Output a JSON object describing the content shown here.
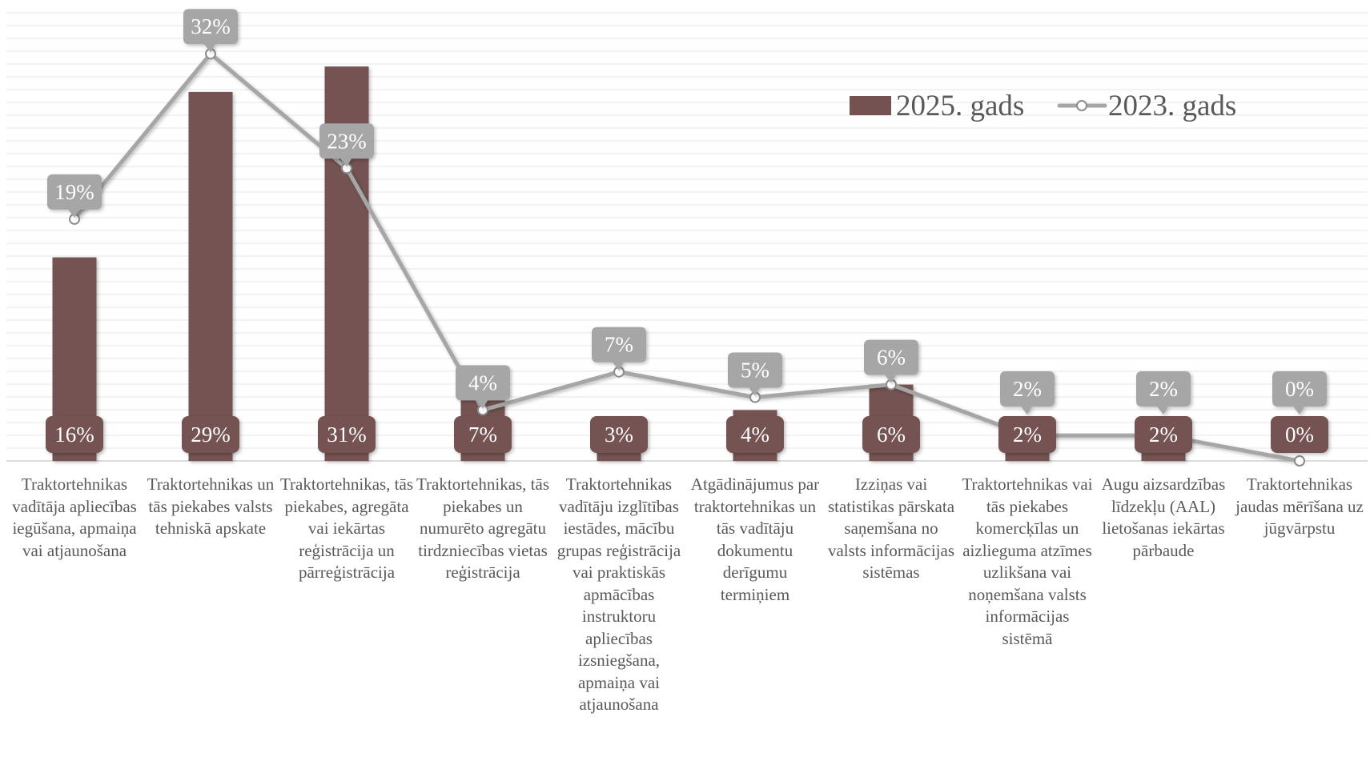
{
  "chart_data": {
    "type": "bar",
    "categories": [
      "Traktortehnikas vadītāja apliecības iegūšana, apmaiņa vai atjaunošana",
      "Traktortehnikas un tās piekabes valsts tehniskā apskate",
      "Traktortehnikas, tās piekabes, agregāta vai iekārtas reģistrācija un pārreģistrācija",
      "Traktortehnikas, tās piekabes un numurēto agregātu tirdzniecības vietas reģistrācija",
      "Traktortehnikas vadītāju izglītības iestādes, mācību grupas reģistrācija vai praktiskās apmācības instruktoru apliecības izsniegšana, apmaiņa vai atjaunošana",
      "Atgādinājumus par traktortehnikas un tās vadītāju dokumentu derīgumu termiņiem",
      "Izziņas vai statistikas pārskata saņemšana no valsts informācijas sistēmas",
      "Traktortehnikas vai tās piekabes komercķīlas un aizlieguma atzīmes uzlikšana vai noņemšana valsts informācijas sistēmā",
      "Augu aizsardzības līdzekļu (AAL) lietošanas iekārtas pārbaude",
      "Traktortehnikas jaudas mērīšana uz jūgvārpstu"
    ],
    "series": [
      {
        "name": "2025. gads",
        "kind": "bar",
        "color": "#745252",
        "values": [
          16,
          29,
          31,
          7,
          3,
          4,
          6,
          2,
          2,
          0
        ],
        "labels": [
          "16%",
          "29%",
          "31%",
          "7%",
          "3%",
          "4%",
          "6%",
          "2%",
          "2%",
          "0%"
        ]
      },
      {
        "name": "2023. gads",
        "kind": "line",
        "color": "#a6a6a6",
        "values": [
          19,
          32,
          23,
          4,
          7,
          5,
          6,
          2,
          2,
          0
        ],
        "labels": [
          "19%",
          "32%",
          "23%",
          "4%",
          "7%",
          "5%",
          "6%",
          "2%",
          "2%",
          "0%"
        ]
      }
    ],
    "ylim": [
      0,
      35
    ],
    "grid": true,
    "legend_position": "top-right",
    "xlabel": "",
    "ylabel": ""
  }
}
